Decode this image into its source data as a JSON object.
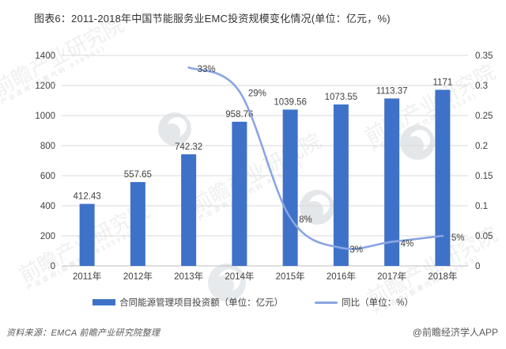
{
  "title": "图表6：2011-2018年中国节能服务业EMC投资规模变化情况(单位：亿元，%)",
  "chart_data": {
    "type": "bar",
    "subtype": "bar-line-combo",
    "title": "图表6：2011-2018年中国节能服务业EMC投资规模变化情况(单位：亿元，%)",
    "categories": [
      "2011年",
      "2012年",
      "2013年",
      "2014年",
      "2015年",
      "2016年",
      "2017年",
      "2018年"
    ],
    "series": [
      {
        "name": "合同能源管理项目投资额（单位：亿元）",
        "chart": "bar",
        "axis": "left",
        "color": "#3E72C8",
        "values": [
          412.43,
          557.65,
          742.32,
          958.76,
          1039.56,
          1073.55,
          1113.37,
          1171
        ],
        "labels": [
          "412.43",
          "557.65",
          "742.32",
          "958.76",
          "1039.56",
          "1073.55",
          "1113.37",
          "1171"
        ]
      },
      {
        "name": "同比（单位：%）",
        "chart": "line",
        "axis": "right",
        "color": "#89A6E3",
        "values": [
          null,
          null,
          0.33,
          0.29,
          0.08,
          0.03,
          0.04,
          0.05
        ],
        "labels": [
          null,
          null,
          "33%",
          "29%",
          "8%",
          "3%",
          "4%",
          "5%"
        ]
      }
    ],
    "left_axis": {
      "min": 0,
      "max": 1400,
      "step": 200,
      "ticks": [
        "0",
        "200",
        "400",
        "600",
        "800",
        "1000",
        "1200",
        "1400"
      ]
    },
    "right_axis": {
      "min": 0,
      "max": 0.35,
      "step": 0.05,
      "ticks": [
        "0",
        "0.05",
        "0.1",
        "0.15",
        "0.2",
        "0.25",
        "0.3",
        "0.35"
      ]
    },
    "grid": true,
    "legend_position": "bottom"
  },
  "legend": {
    "bar_label": "合同能源管理项目投资额（单位：亿元）",
    "line_label": "同比（单位：%）"
  },
  "footer": {
    "source": "资料来源：EMCA 前瞻产业研究院整理",
    "credit": "@前瞻经济学人APP"
  },
  "watermark": {
    "text": "前瞻产业研究院",
    "sub": "产业咨询(股票代码:839599)"
  },
  "colors": {
    "bar": "#3E72C8",
    "line": "#89A6E3",
    "grid": "#D9D9D9",
    "axis": "#BFBFBF",
    "text": "#404040",
    "title": "#333333",
    "footer": "#595959"
  }
}
